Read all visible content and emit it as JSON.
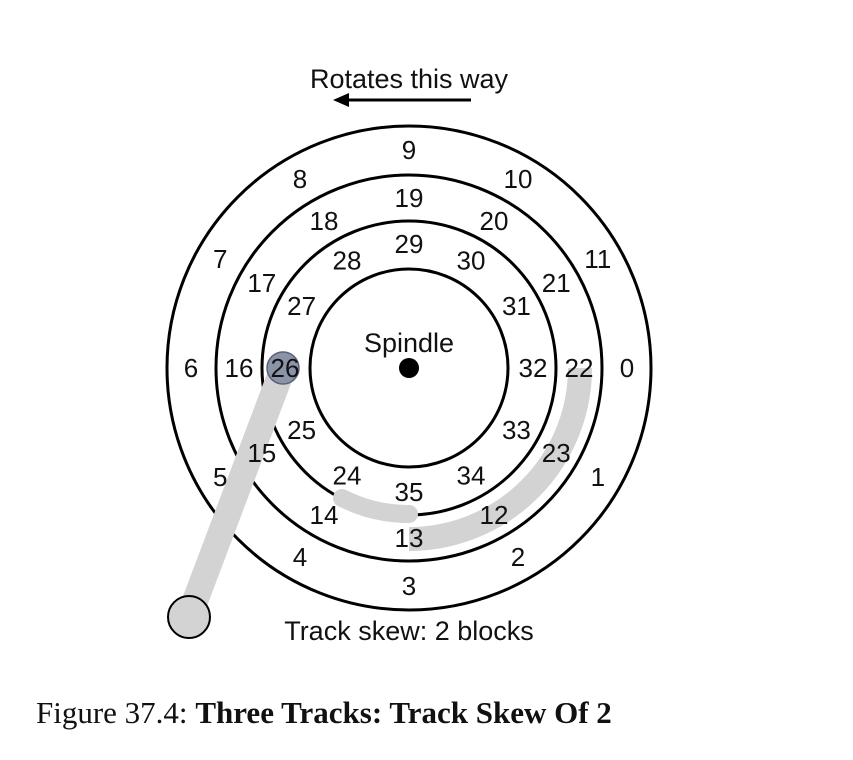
{
  "rotation_label": "Rotates this way",
  "spindle_label": "Spindle",
  "skew_label": "Track skew: 2 blocks",
  "tracks": [
    {
      "name": "outer",
      "sectors": [
        "0",
        "1",
        "2",
        "3",
        "4",
        "5",
        "6",
        "7",
        "8",
        "9",
        "10",
        "11"
      ]
    },
    {
      "name": "middle",
      "sectors": [
        "22",
        "23",
        "12",
        "13",
        "14",
        "15",
        "16",
        "17",
        "18",
        "19",
        "20",
        "21"
      ]
    },
    {
      "name": "inner",
      "sectors": [
        "32",
        "33",
        "34",
        "35",
        "24",
        "25",
        "26",
        "27",
        "28",
        "29",
        "30",
        "31"
      ]
    }
  ],
  "caption": {
    "number": "Figure 37.4:",
    "title": "Three Tracks: Track Skew Of 2"
  }
}
